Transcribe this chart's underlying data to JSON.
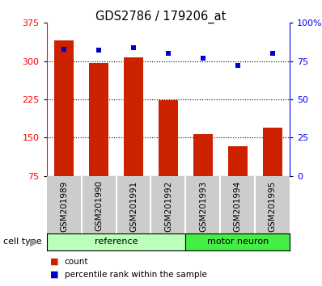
{
  "title": "GDS2786 / 179206_at",
  "categories": [
    "GSM201989",
    "GSM201990",
    "GSM201991",
    "GSM201992",
    "GSM201993",
    "GSM201994",
    "GSM201995"
  ],
  "bar_values": [
    340,
    297,
    307,
    224,
    157,
    133,
    170
  ],
  "percentile_values": [
    83,
    82,
    84,
    80,
    77,
    72,
    80
  ],
  "bar_color": "#cc2200",
  "dot_color": "#0000cc",
  "left_ylim": [
    75,
    375
  ],
  "left_yticks": [
    75,
    150,
    225,
    300,
    375
  ],
  "right_ylim": [
    0,
    100
  ],
  "right_yticks": [
    0,
    25,
    50,
    75,
    100
  ],
  "right_yticklabels": [
    "0",
    "25",
    "50",
    "75",
    "100%"
  ],
  "grid_values": [
    150,
    225,
    300
  ],
  "cell_types": [
    {
      "label": "reference",
      "start": 0,
      "end": 4,
      "color": "#bbffbb"
    },
    {
      "label": "motor neuron",
      "start": 4,
      "end": 7,
      "color": "#44ee44"
    }
  ],
  "legend_count_label": "count",
  "legend_pct_label": "percentile rank within the sample",
  "cell_type_label": "cell type",
  "bg_color": "#ffffff",
  "plot_bg": "#ffffff",
  "xtick_bg": "#cccccc",
  "xtick_divider": "#ffffff"
}
